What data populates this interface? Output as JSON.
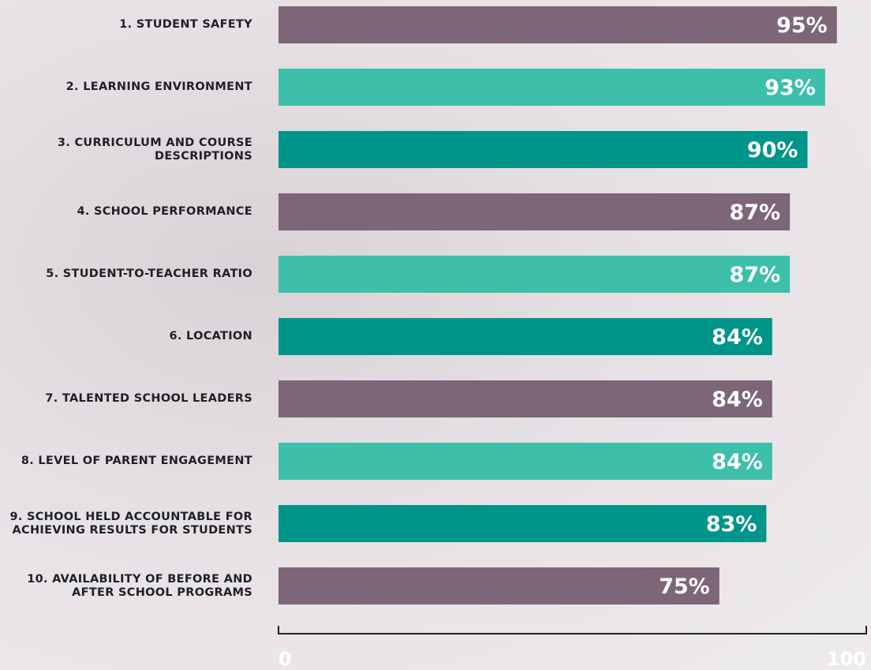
{
  "chart_data": {
    "type": "bar",
    "orientation": "horizontal",
    "categories": [
      "1. STUDENT SAFETY",
      "2. LEARNING ENVIRONMENT",
      "3. CURRICULUM AND COURSE DESCRIPTIONS",
      "4. SCHOOL PERFORMANCE",
      "5. STUDENT-TO-TEACHER RATIO",
      "6. LOCATION",
      "7. TALENTED SCHOOL LEADERS",
      "8. LEVEL OF PARENT ENGAGEMENT",
      "9. SCHOOL HELD ACCOUNTABLE FOR ACHIEVING RESULTS FOR STUDENTS",
      "10. AVAILABILITY OF BEFORE AND AFTER SCHOOL PROGRAMS"
    ],
    "values": [
      95,
      93,
      90,
      87,
      87,
      84,
      84,
      84,
      83,
      75
    ],
    "value_labels": [
      "95%",
      "93%",
      "90%",
      "87%",
      "87%",
      "84%",
      "84%",
      "84%",
      "83%",
      "75%"
    ],
    "colors": [
      "#7d6677",
      "#3dbfaa",
      "#00958a",
      "#7d6677",
      "#3dbfaa",
      "#00958a",
      "#7d6677",
      "#3dbfaa",
      "#00958a",
      "#7d6677"
    ],
    "xlim": [
      0,
      100
    ],
    "xticks": [
      0,
      100
    ]
  }
}
